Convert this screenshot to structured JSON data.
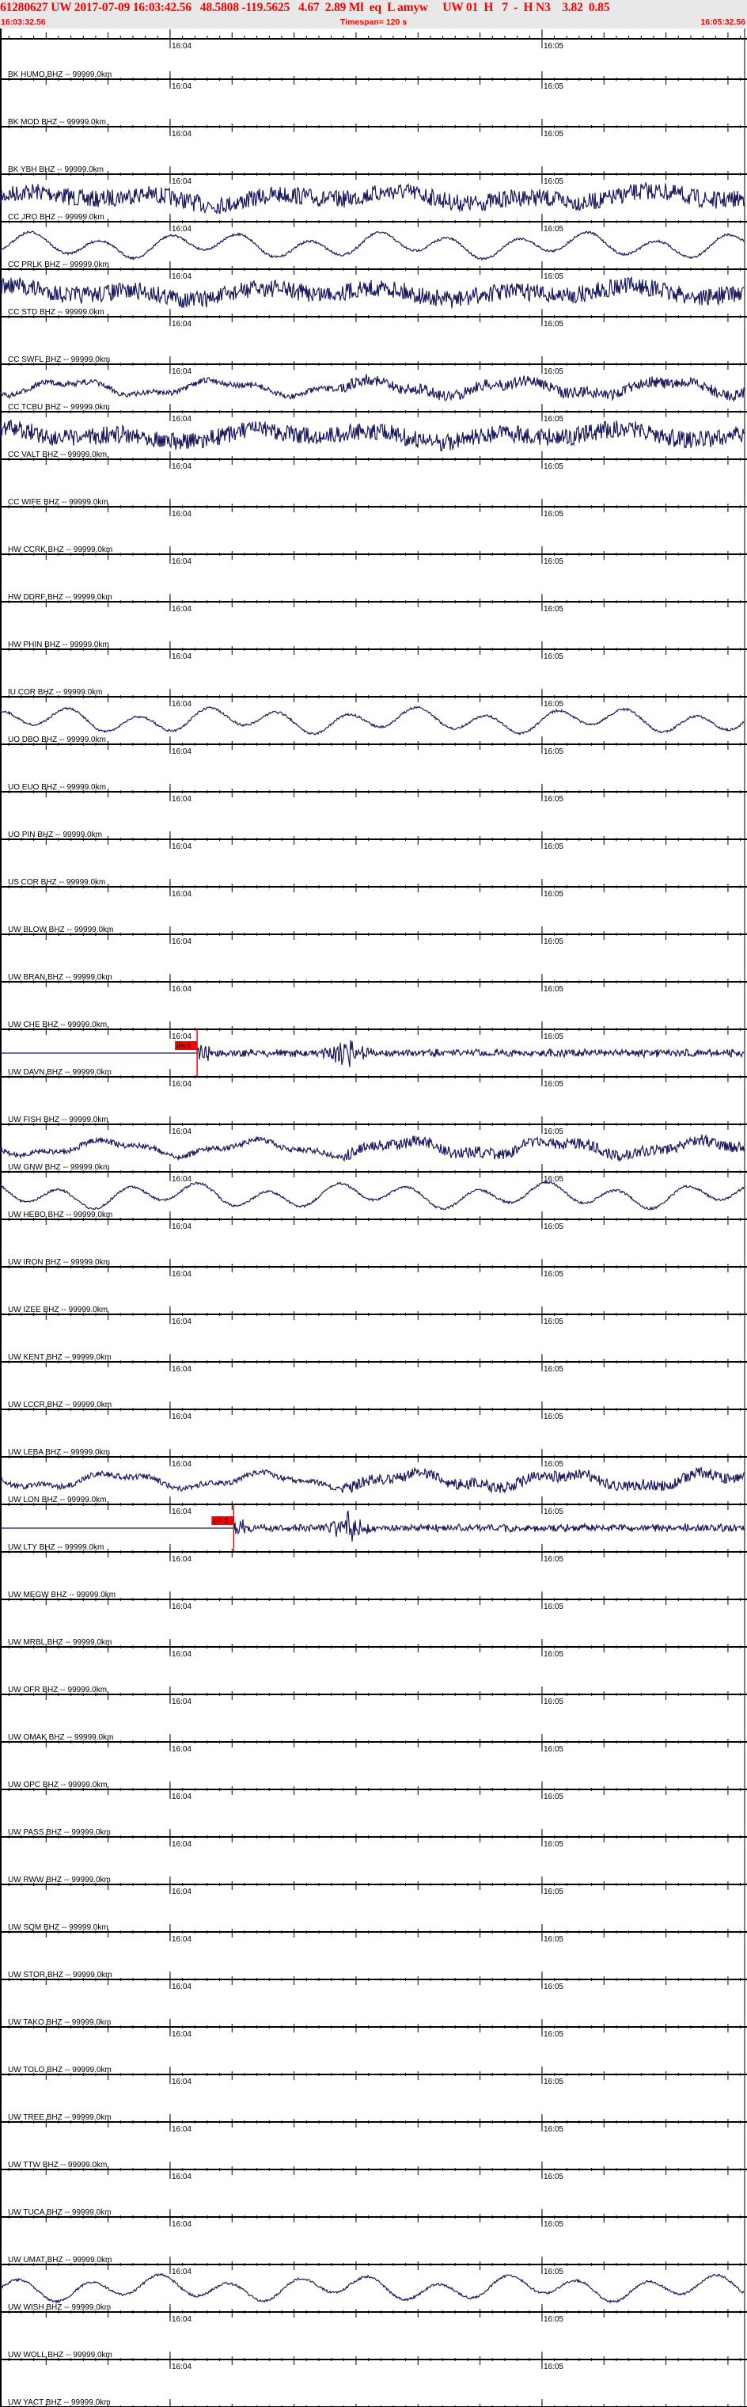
{
  "header": {
    "title": "61280627 UW 2017-07-09 16:03:42.56   48.5808 -119.5625   4.67  2.89 Ml  eq  L amyw     UW 01  H   7  -  H N3    3.82  0.85",
    "start_time": "16:03:32.56",
    "timespan": "Timespan= 120 s",
    "end_time": "16:05:32.56"
  },
  "chart_data": {
    "type": "line",
    "title": "61280627 UW 2017-07-09 16:03:42.56",
    "time_axis": {
      "start": "16:03:32.56",
      "end": "16:05:32.56",
      "span_s": 120,
      "tick_labels": [
        "16:04",
        "16:05"
      ],
      "minor_tick_s": 2,
      "major_tick_s": 10
    },
    "trace_color": "#1a1a5e",
    "pick_color": "#ff0000",
    "traces": [
      {
        "label": "BK HUMO BHZ -- 99999.0km",
        "data": false
      },
      {
        "label": "BK MOD BHZ -- 99999.0km",
        "data": false
      },
      {
        "label": "BK YBH BHZ -- 99999.0km",
        "data": true,
        "style": "noise"
      },
      {
        "label": "CC JRO BHZ -- 99999.0km",
        "data": true,
        "style": "smooth"
      },
      {
        "label": "CC PRLK BHZ -- 99999.0km",
        "data": true,
        "style": "noise"
      },
      {
        "label": "CC STD BHZ -- 99999.0km",
        "data": false
      },
      {
        "label": "CC SWFL BHZ -- 99999.0km",
        "data": true,
        "style": "mixed"
      },
      {
        "label": "CC TCBU BHZ -- 99999.0km",
        "data": true,
        "style": "noise"
      },
      {
        "label": "CC VALT BHZ -- 99999.0km",
        "data": false
      },
      {
        "label": "CC WIFE BHZ -- 99999.0km",
        "data": false
      },
      {
        "label": "HW CCRK BHZ -- 99999.0km",
        "data": false
      },
      {
        "label": "HW DDRF BHZ -- 99999.0km",
        "data": false
      },
      {
        "label": "HW PHIN BHZ -- 99999.0km",
        "data": false
      },
      {
        "label": "IU COR BHZ -- 99999.0km",
        "data": true,
        "style": "smooth"
      },
      {
        "label": "UO DBO BHZ -- 99999.0km",
        "data": false
      },
      {
        "label": "UO EUO BHZ -- 99999.0km",
        "data": false
      },
      {
        "label": "UO PIN BHZ -- 99999.0km",
        "data": false
      },
      {
        "label": "US COR BHZ -- 99999.0km",
        "data": false
      },
      {
        "label": "UW BLOW BHZ -- 99999.0km",
        "data": false
      },
      {
        "label": "UW BRAN BHZ -- 99999.0km",
        "data": false
      },
      {
        "label": "UW CHE BHZ -- 99999.0km",
        "data": true,
        "style": "event",
        "pick": {
          "label": "iPc1",
          "time_s": 31.8
        }
      },
      {
        "label": "UW DAVN BHZ -- 99999.0km",
        "data": false
      },
      {
        "label": "UW FISH BHZ -- 99999.0km",
        "data": true,
        "style": "mixed"
      },
      {
        "label": "UW GNW BHZ -- 99999.0km",
        "data": true,
        "style": "smooth"
      },
      {
        "label": "UW HEBO BHZ -- 99999.0km",
        "data": false
      },
      {
        "label": "UW IRON BHZ -- 99999.0km",
        "data": false
      },
      {
        "label": "UW IZEE BHZ -- 99999.0km",
        "data": false
      },
      {
        "label": "UW KENT BHZ -- 99999.0km",
        "data": false
      },
      {
        "label": "UW LCCR BHZ -- 99999.0km",
        "data": false
      },
      {
        "label": "UW LEBA BHZ -- 99999.0km",
        "data": true,
        "style": "mixed"
      },
      {
        "label": "UW LON BHZ -- 99999.0km",
        "data": true,
        "style": "event",
        "pick": {
          "label": "eP 2",
          "time_s": 37.7
        }
      },
      {
        "label": "UW LTY BHZ -- 99999.0km",
        "data": false
      },
      {
        "label": "UW MEGW BHZ -- 99999.0km",
        "data": false
      },
      {
        "label": "UW MRBL BHZ -- 99999.0km",
        "data": false
      },
      {
        "label": "UW OFR BHZ -- 99999.0km",
        "data": false
      },
      {
        "label": "UW OMAK BHZ -- 99999.0km",
        "data": false
      },
      {
        "label": "UW OPC BHZ -- 99999.0km",
        "data": false
      },
      {
        "label": "UW PASS BHZ -- 99999.0km",
        "data": false
      },
      {
        "label": "UW RWW BHZ -- 99999.0km",
        "data": false
      },
      {
        "label": "UW SQM BHZ -- 99999.0km",
        "data": false
      },
      {
        "label": "UW STOR BHZ -- 99999.0km",
        "data": false
      },
      {
        "label": "UW TAKO BHZ -- 99999.0km",
        "data": false
      },
      {
        "label": "UW TOLO BHZ -- 99999.0km",
        "data": false
      },
      {
        "label": "UW TREE BHZ -- 99999.0km",
        "data": false
      },
      {
        "label": "UW TTW BHZ -- 99999.0km",
        "data": false
      },
      {
        "label": "UW TUCA BHZ -- 99999.0km",
        "data": false
      },
      {
        "label": "UW UMAT BHZ -- 99999.0km",
        "data": true,
        "style": "smooth"
      },
      {
        "label": "UW WISH BHZ -- 99999.0km",
        "data": false
      },
      {
        "label": "UW WOLL BHZ -- 99999.0km",
        "data": false
      },
      {
        "label": "UW YACT BHZ -- 99999.0km",
        "data": false
      }
    ]
  }
}
